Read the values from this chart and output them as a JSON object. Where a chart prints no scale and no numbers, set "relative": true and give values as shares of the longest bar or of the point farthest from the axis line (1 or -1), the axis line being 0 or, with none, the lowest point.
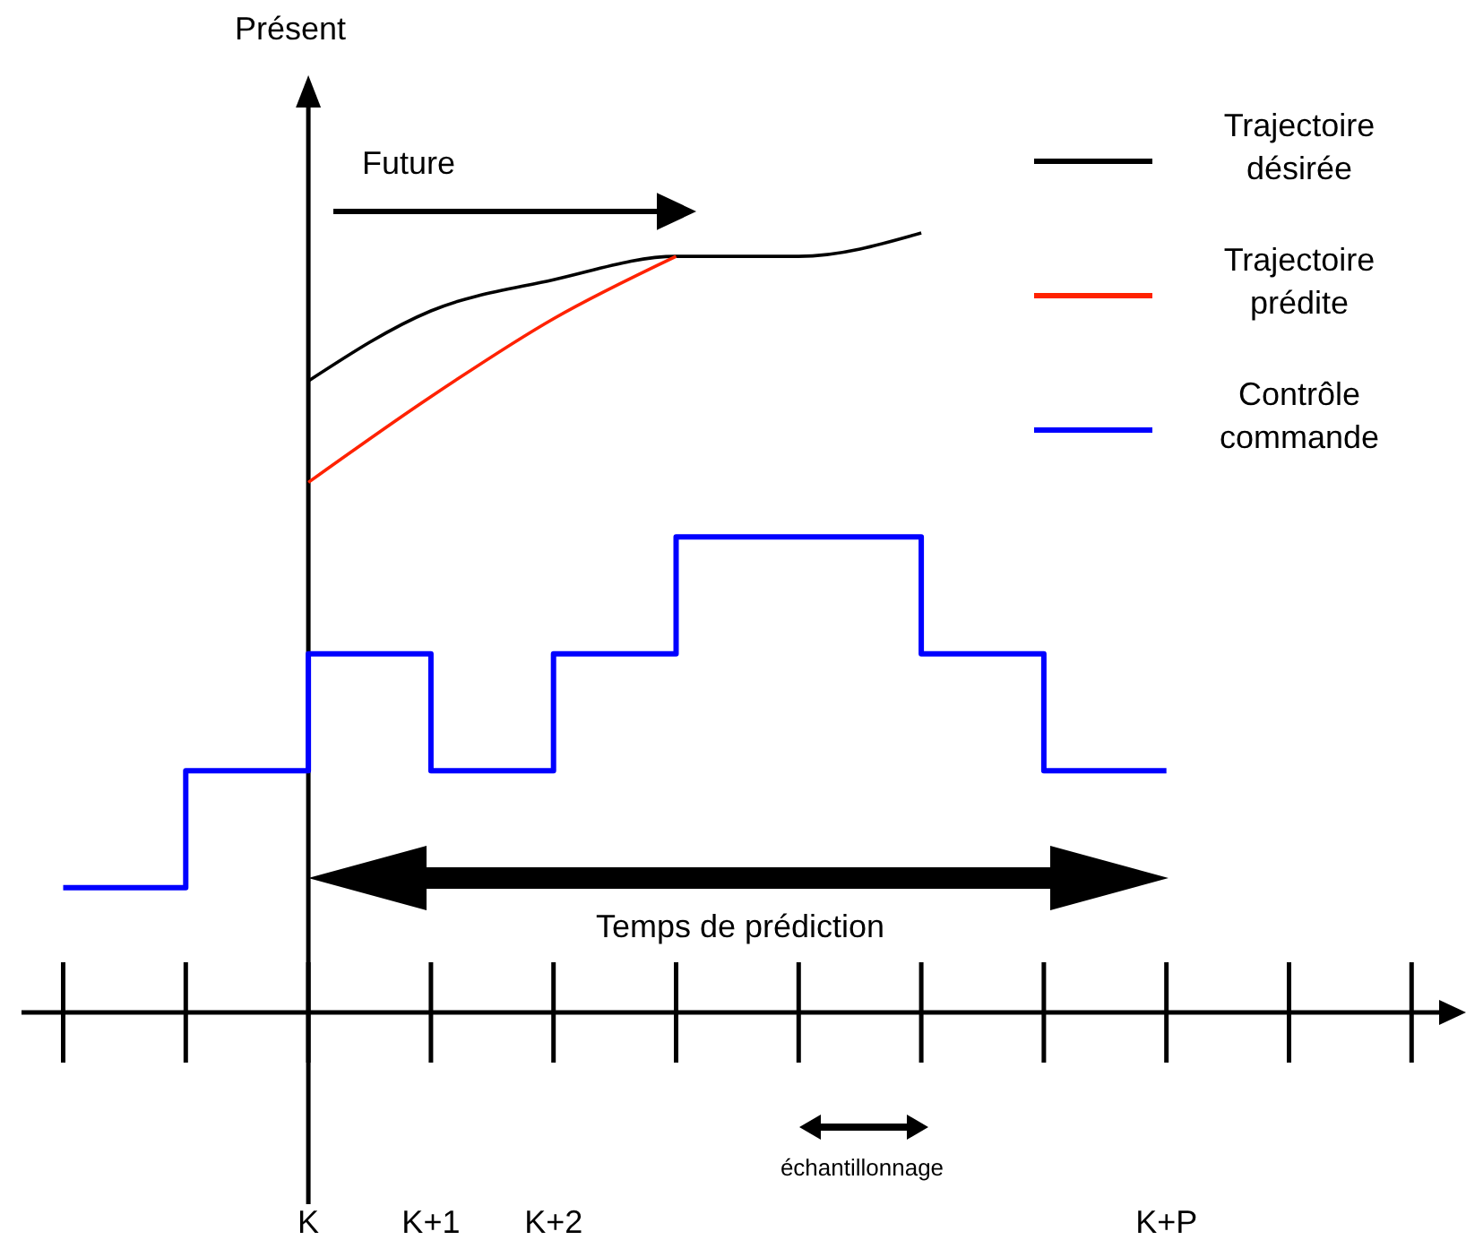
{
  "chart_data": {
    "type": "line",
    "relative": true,
    "categories": [
      null,
      null,
      "K",
      "K+1",
      "K+2",
      null,
      null,
      null,
      null,
      "K+P",
      null,
      null
    ],
    "series": [
      {
        "name": "Trajectoire désirée",
        "color": "#000000",
        "type": "line",
        "values": [
          null,
          null,
          0.81,
          0.9,
          0.94,
          0.97,
          0.97,
          1.0,
          null,
          null,
          null,
          null
        ]
      },
      {
        "name": "Trajectoire prédite",
        "color": "#ff2200",
        "type": "line",
        "values": [
          null,
          null,
          0.68,
          0.79,
          0.89,
          0.97,
          null,
          null,
          null,
          null,
          null,
          null
        ]
      },
      {
        "name": "Contrôle commande",
        "color": "#0000ff",
        "type": "step",
        "values": [
          0.16,
          0.31,
          0.46,
          0.31,
          0.46,
          0.61,
          0.61,
          0.46,
          0.31,
          0.31,
          null,
          null
        ]
      }
    ],
    "annotations": [
      "Présent",
      "Future",
      "Temps de prédiction",
      "échantillonnage"
    ],
    "legend": "top right",
    "grid": "x",
    "marker": "none",
    "line_style": "solid"
  }
}
